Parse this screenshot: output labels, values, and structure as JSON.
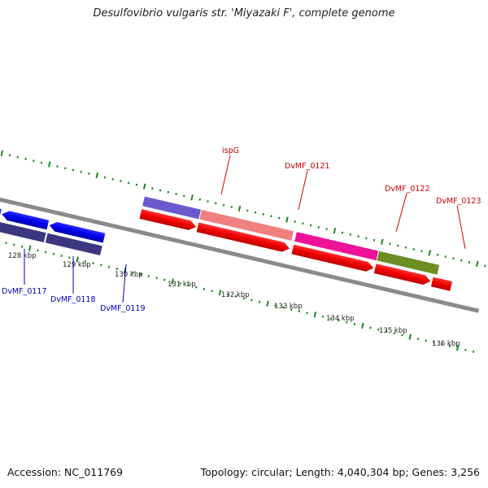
{
  "title": "Desulfovibrio vulgaris str. 'Miyazaki F', complete genome",
  "footer": {
    "accession": "Accession: NC_011769",
    "summary": "Topology: circular; Length: 4,040,304 bp; Genes: 3,256"
  },
  "scale_labels": [
    "128 kbp",
    "129 kbp",
    "130 kbp",
    "131 kbp",
    "132 kbp",
    "133 kbp",
    "134 kbp",
    "135 kbp",
    "136 kbp"
  ],
  "genes_top": [
    {
      "label": "ispG",
      "color": "#cc0000"
    },
    {
      "label": "DvMF_0121",
      "color": "#cc0000"
    },
    {
      "label": "DvMF_0122",
      "color": "#cc0000"
    },
    {
      "label": "DvMF_0123",
      "color": "#cc0000"
    }
  ],
  "genes_bottom": [
    {
      "label": "DvMF_0117",
      "color": "#0000bb"
    },
    {
      "label": "DvMF_0118",
      "color": "#0000bb"
    },
    {
      "label": "DvMF_0119",
      "color": "#0000bb"
    }
  ],
  "colors": {
    "backbone": "#8a8a8a",
    "cds_forward": "#ff0000",
    "cds_reverse": "#0000ff",
    "tick": "#1a8a1a",
    "feature_dark": "#3d3580",
    "feature_violet": "#6a5acd",
    "feature_salmon": "#f08080",
    "feature_magenta": "#ee1199",
    "feature_olive": "#6b8e23"
  }
}
